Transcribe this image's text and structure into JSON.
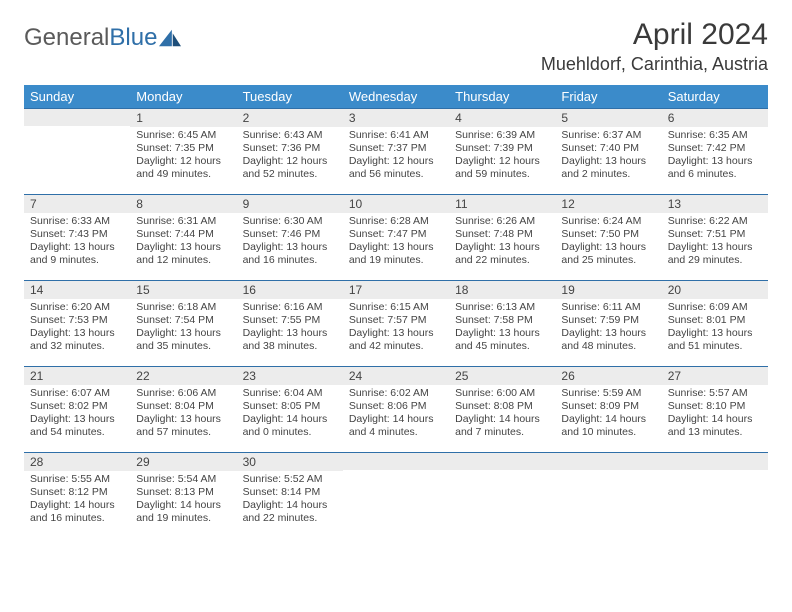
{
  "brand": {
    "name_part1": "General",
    "name_part2": "Blue"
  },
  "title": "April 2024",
  "location": "Muehldorf, Carinthia, Austria",
  "colors": {
    "header_bg": "#3b8bca",
    "header_text": "#ffffff",
    "row_border": "#2f6fa8",
    "daynum_bg": "#ececec",
    "text": "#444444"
  },
  "weekdays": [
    "Sunday",
    "Monday",
    "Tuesday",
    "Wednesday",
    "Thursday",
    "Friday",
    "Saturday"
  ],
  "weeks": [
    [
      {
        "n": "",
        "sr": "",
        "ss": "",
        "dl": ""
      },
      {
        "n": "1",
        "sr": "Sunrise: 6:45 AM",
        "ss": "Sunset: 7:35 PM",
        "dl": "Daylight: 12 hours and 49 minutes."
      },
      {
        "n": "2",
        "sr": "Sunrise: 6:43 AM",
        "ss": "Sunset: 7:36 PM",
        "dl": "Daylight: 12 hours and 52 minutes."
      },
      {
        "n": "3",
        "sr": "Sunrise: 6:41 AM",
        "ss": "Sunset: 7:37 PM",
        "dl": "Daylight: 12 hours and 56 minutes."
      },
      {
        "n": "4",
        "sr": "Sunrise: 6:39 AM",
        "ss": "Sunset: 7:39 PM",
        "dl": "Daylight: 12 hours and 59 minutes."
      },
      {
        "n": "5",
        "sr": "Sunrise: 6:37 AM",
        "ss": "Sunset: 7:40 PM",
        "dl": "Daylight: 13 hours and 2 minutes."
      },
      {
        "n": "6",
        "sr": "Sunrise: 6:35 AM",
        "ss": "Sunset: 7:42 PM",
        "dl": "Daylight: 13 hours and 6 minutes."
      }
    ],
    [
      {
        "n": "7",
        "sr": "Sunrise: 6:33 AM",
        "ss": "Sunset: 7:43 PM",
        "dl": "Daylight: 13 hours and 9 minutes."
      },
      {
        "n": "8",
        "sr": "Sunrise: 6:31 AM",
        "ss": "Sunset: 7:44 PM",
        "dl": "Daylight: 13 hours and 12 minutes."
      },
      {
        "n": "9",
        "sr": "Sunrise: 6:30 AM",
        "ss": "Sunset: 7:46 PM",
        "dl": "Daylight: 13 hours and 16 minutes."
      },
      {
        "n": "10",
        "sr": "Sunrise: 6:28 AM",
        "ss": "Sunset: 7:47 PM",
        "dl": "Daylight: 13 hours and 19 minutes."
      },
      {
        "n": "11",
        "sr": "Sunrise: 6:26 AM",
        "ss": "Sunset: 7:48 PM",
        "dl": "Daylight: 13 hours and 22 minutes."
      },
      {
        "n": "12",
        "sr": "Sunrise: 6:24 AM",
        "ss": "Sunset: 7:50 PM",
        "dl": "Daylight: 13 hours and 25 minutes."
      },
      {
        "n": "13",
        "sr": "Sunrise: 6:22 AM",
        "ss": "Sunset: 7:51 PM",
        "dl": "Daylight: 13 hours and 29 minutes."
      }
    ],
    [
      {
        "n": "14",
        "sr": "Sunrise: 6:20 AM",
        "ss": "Sunset: 7:53 PM",
        "dl": "Daylight: 13 hours and 32 minutes."
      },
      {
        "n": "15",
        "sr": "Sunrise: 6:18 AM",
        "ss": "Sunset: 7:54 PM",
        "dl": "Daylight: 13 hours and 35 minutes."
      },
      {
        "n": "16",
        "sr": "Sunrise: 6:16 AM",
        "ss": "Sunset: 7:55 PM",
        "dl": "Daylight: 13 hours and 38 minutes."
      },
      {
        "n": "17",
        "sr": "Sunrise: 6:15 AM",
        "ss": "Sunset: 7:57 PM",
        "dl": "Daylight: 13 hours and 42 minutes."
      },
      {
        "n": "18",
        "sr": "Sunrise: 6:13 AM",
        "ss": "Sunset: 7:58 PM",
        "dl": "Daylight: 13 hours and 45 minutes."
      },
      {
        "n": "19",
        "sr": "Sunrise: 6:11 AM",
        "ss": "Sunset: 7:59 PM",
        "dl": "Daylight: 13 hours and 48 minutes."
      },
      {
        "n": "20",
        "sr": "Sunrise: 6:09 AM",
        "ss": "Sunset: 8:01 PM",
        "dl": "Daylight: 13 hours and 51 minutes."
      }
    ],
    [
      {
        "n": "21",
        "sr": "Sunrise: 6:07 AM",
        "ss": "Sunset: 8:02 PM",
        "dl": "Daylight: 13 hours and 54 minutes."
      },
      {
        "n": "22",
        "sr": "Sunrise: 6:06 AM",
        "ss": "Sunset: 8:04 PM",
        "dl": "Daylight: 13 hours and 57 minutes."
      },
      {
        "n": "23",
        "sr": "Sunrise: 6:04 AM",
        "ss": "Sunset: 8:05 PM",
        "dl": "Daylight: 14 hours and 0 minutes."
      },
      {
        "n": "24",
        "sr": "Sunrise: 6:02 AM",
        "ss": "Sunset: 8:06 PM",
        "dl": "Daylight: 14 hours and 4 minutes."
      },
      {
        "n": "25",
        "sr": "Sunrise: 6:00 AM",
        "ss": "Sunset: 8:08 PM",
        "dl": "Daylight: 14 hours and 7 minutes."
      },
      {
        "n": "26",
        "sr": "Sunrise: 5:59 AM",
        "ss": "Sunset: 8:09 PM",
        "dl": "Daylight: 14 hours and 10 minutes."
      },
      {
        "n": "27",
        "sr": "Sunrise: 5:57 AM",
        "ss": "Sunset: 8:10 PM",
        "dl": "Daylight: 14 hours and 13 minutes."
      }
    ],
    [
      {
        "n": "28",
        "sr": "Sunrise: 5:55 AM",
        "ss": "Sunset: 8:12 PM",
        "dl": "Daylight: 14 hours and 16 minutes."
      },
      {
        "n": "29",
        "sr": "Sunrise: 5:54 AM",
        "ss": "Sunset: 8:13 PM",
        "dl": "Daylight: 14 hours and 19 minutes."
      },
      {
        "n": "30",
        "sr": "Sunrise: 5:52 AM",
        "ss": "Sunset: 8:14 PM",
        "dl": "Daylight: 14 hours and 22 minutes."
      },
      {
        "n": "",
        "sr": "",
        "ss": "",
        "dl": ""
      },
      {
        "n": "",
        "sr": "",
        "ss": "",
        "dl": ""
      },
      {
        "n": "",
        "sr": "",
        "ss": "",
        "dl": ""
      },
      {
        "n": "",
        "sr": "",
        "ss": "",
        "dl": ""
      }
    ]
  ]
}
